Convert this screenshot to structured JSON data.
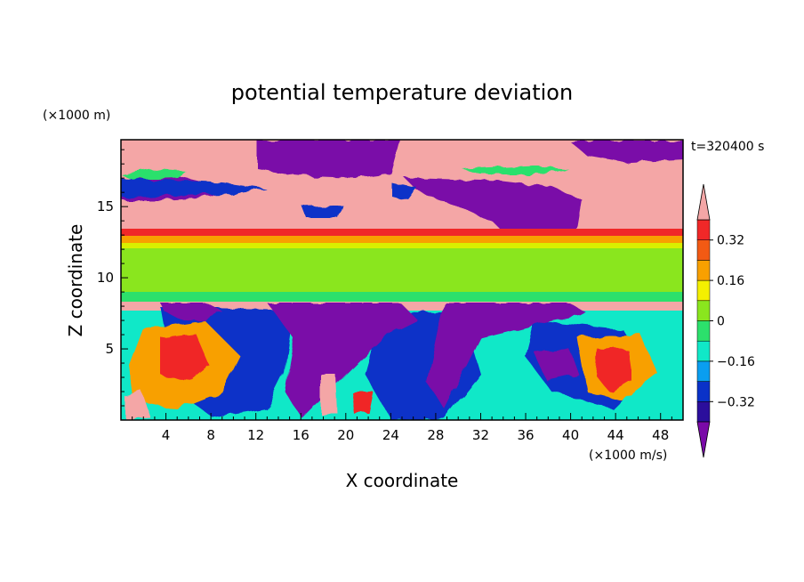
{
  "chart_data": {
    "type": "heatmap",
    "title": "potential temperature deviation",
    "xlabel": "X coordinate",
    "ylabel": "Z coordinate",
    "x_unit": "(×1000 m/s)",
    "y_unit": "(×1000 m)",
    "time_label": "t=320400 s",
    "xlim": [
      0,
      50
    ],
    "ylim": [
      0,
      19.7
    ],
    "x_ticks": [
      4,
      8,
      12,
      16,
      20,
      24,
      28,
      32,
      36,
      40,
      44,
      48
    ],
    "y_ticks": [
      5,
      10,
      15
    ],
    "grid": false,
    "legend": "right colorbar",
    "colorbar": {
      "levels": [
        -0.4,
        -0.32,
        -0.24,
        -0.16,
        -0.08,
        0,
        0.08,
        0.16,
        0.24,
        0.32,
        0.4
      ],
      "tick_labels": [
        "0.32",
        "0.16",
        "0",
        "−0.16",
        "−0.32"
      ],
      "tick_values": [
        0.32,
        0.16,
        0,
        -0.16,
        -0.32
      ],
      "colors": [
        "#7a0aa8",
        "#2b0e9c",
        "#0a32c8",
        "#0a9ef0",
        "#10e8c8",
        "#2ce06c",
        "#8ae61e",
        "#f4f000",
        "#f8a000",
        "#f25a14",
        "#f02828",
        "#f4a6a6"
      ]
    },
    "field_structure": {
      "upper_layer": {
        "z_range": [
          14.2,
          19.7
        ],
        "dominant_values": [
          0.45,
          -0.45
        ]
      },
      "red_band": {
        "z_range": [
          12.9,
          13.5
        ],
        "value": 0.35
      },
      "green_band": {
        "z_range": [
          8.4,
          12.9
        ],
        "value": 0.02
      },
      "lower_layer": {
        "z_range": [
          0,
          8.4
        ],
        "dominant_values": [
          -0.45,
          0.45
        ]
      }
    }
  }
}
